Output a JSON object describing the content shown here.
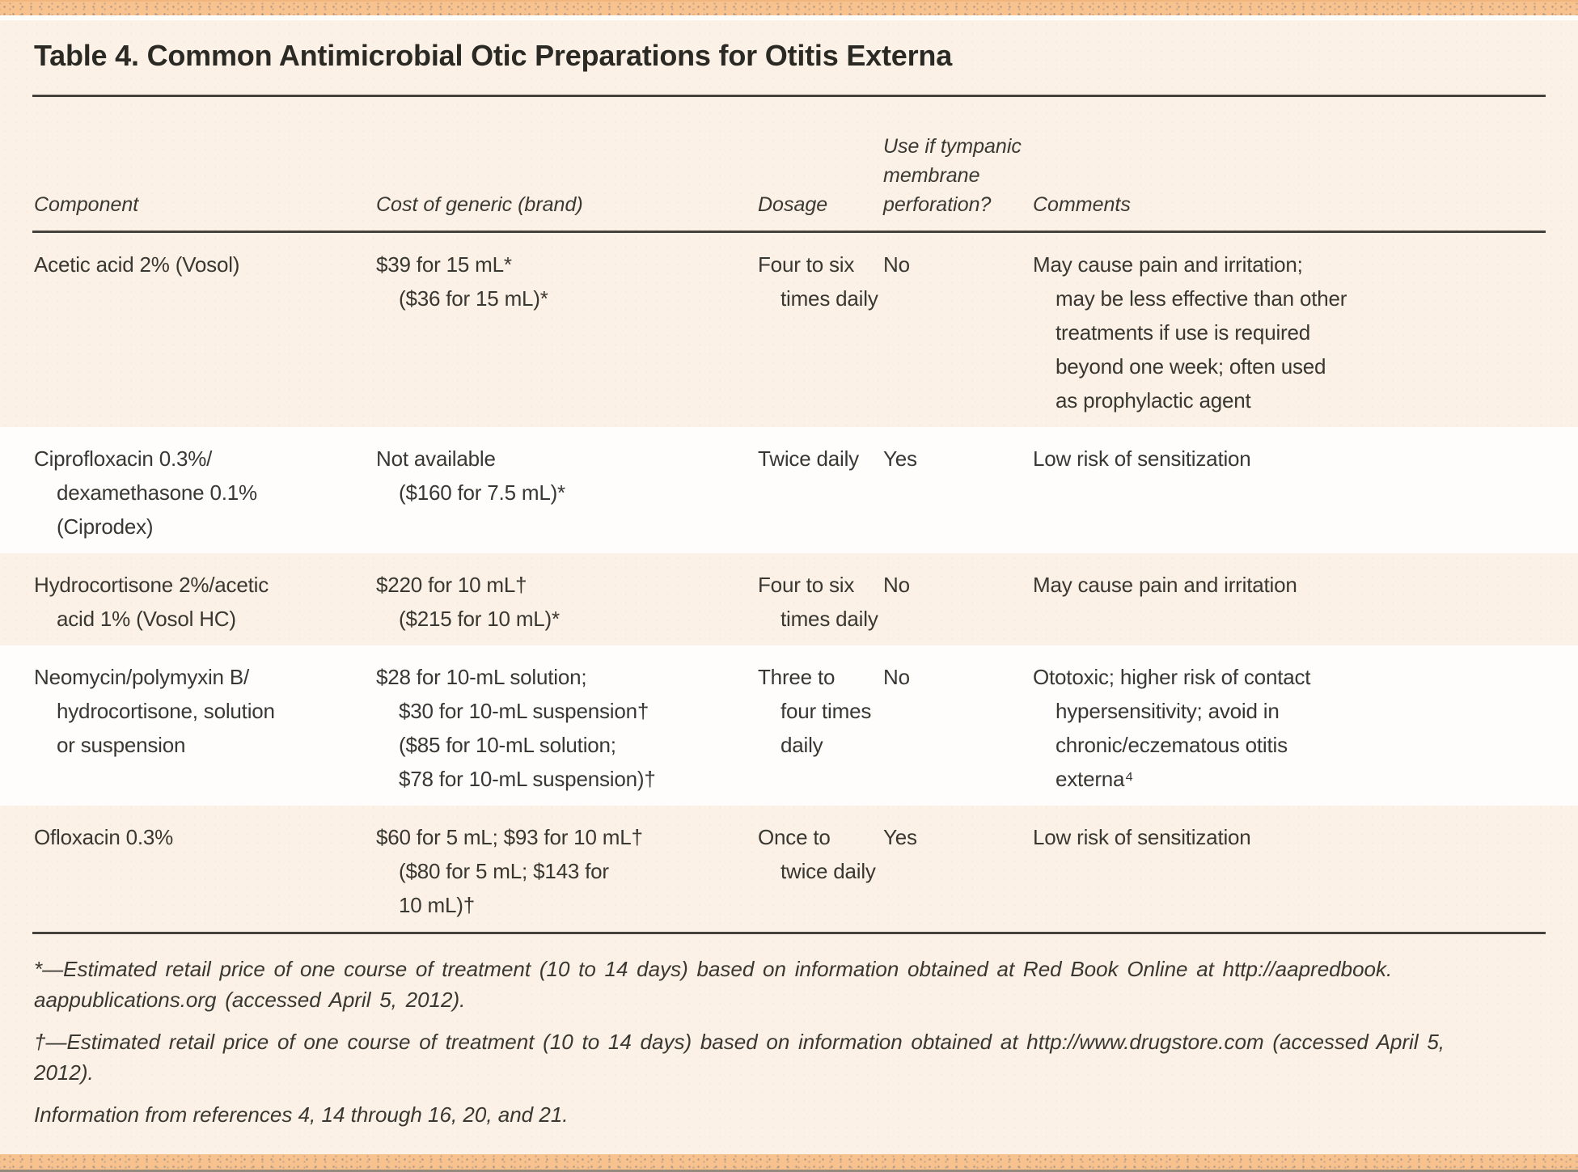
{
  "title": "Table 4. Common Antimicrobial Otic Preparations for Otitis Externa",
  "columns": [
    "Component",
    "Cost of generic (brand)",
    "Dosage",
    [
      "Use if tympanic",
      "membrane",
      "perforation?"
    ],
    "Comments"
  ],
  "rows": [
    {
      "component": [
        "Acetic acid 2% (Vosol)"
      ],
      "cost": [
        "$39 for 15 mL*",
        "($36 for 15 mL)*"
      ],
      "dosage": [
        "Four to six",
        "times daily"
      ],
      "perforation": "No",
      "comments": [
        "May cause pain and irritation;",
        "may be less effective than other",
        "treatments if use is required",
        "beyond one week; often used",
        "as prophylactic agent"
      ]
    },
    {
      "component": [
        "Ciprofloxacin 0.3%/",
        "dexamethasone 0.1%",
        "(Ciprodex)"
      ],
      "cost": [
        "Not available",
        "($160 for 7.5 mL)*"
      ],
      "dosage": [
        "Twice daily"
      ],
      "perforation": "Yes",
      "comments": [
        "Low risk of sensitization"
      ]
    },
    {
      "component": [
        "Hydrocortisone 2%/acetic",
        "acid 1% (Vosol HC)"
      ],
      "cost": [
        "$220 for 10 mL†",
        "($215 for 10 mL)*"
      ],
      "dosage": [
        "Four to six",
        "times daily"
      ],
      "perforation": "No",
      "comments": [
        "May cause pain and irritation"
      ]
    },
    {
      "component": [
        "Neomycin/polymyxin B/",
        "hydrocortisone, solution",
        "or suspension"
      ],
      "cost": [
        "$28 for 10-mL solution;",
        "$30 for 10-mL suspension†",
        "($85 for 10-mL solution;",
        "$78 for 10-mL suspension)†"
      ],
      "dosage": [
        "Three to",
        "four times",
        "daily"
      ],
      "perforation": "No",
      "comments": [
        "Ototoxic; higher risk of contact",
        "hypersensitivity; avoid in",
        "chronic/eczematous otitis",
        "externa⁴"
      ]
    },
    {
      "component": [
        "Ofloxacin 0.3%"
      ],
      "cost": [
        "$60 for 5 mL; $93 for 10 mL†",
        "($80 for 5 mL; $143 for",
        "10 mL)†"
      ],
      "dosage": [
        "Once to",
        "twice daily"
      ],
      "perforation": "Yes",
      "comments": [
        "Low risk of sensitization"
      ]
    }
  ],
  "footnotes": [
    [
      "*—Estimated retail price of one course of treatment (10 to 14 days) based on information obtained at Red Book Online at http://aapredbook.",
      "aappublications.org (accessed April 5, 2012)."
    ],
    [
      "†—Estimated retail price of one course of treatment (10 to 14 days) based on information obtained at http://www.drugstore.com (accessed April 5,",
      "2012)."
    ],
    [
      "Information from references 4, 14 through 16, 20, and 21."
    ]
  ],
  "colors": {
    "accent_bar": "#f8c28e",
    "background": "#fbf1e6",
    "row_highlight": "#fefdfb",
    "rule": "#45423c",
    "text": "#393731"
  }
}
